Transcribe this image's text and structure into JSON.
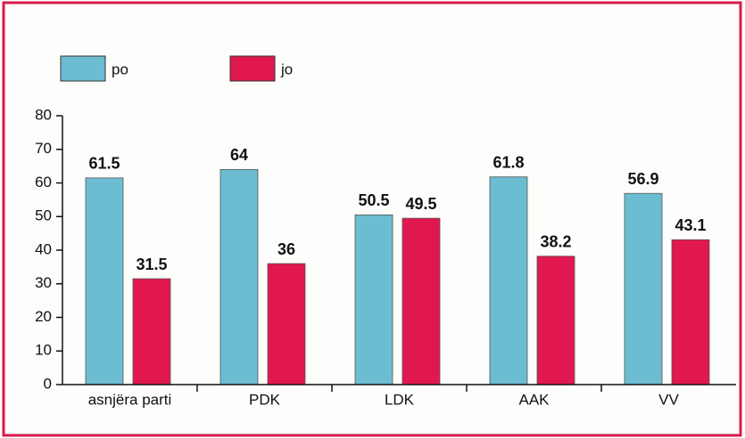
{
  "chart_data": {
    "type": "bar",
    "categories": [
      "asnjëra parti",
      "PDK",
      "LDK",
      "AAK",
      "VV"
    ],
    "series": [
      {
        "name": "po",
        "color": "#6cbcd2",
        "values": [
          61.5,
          64,
          50.5,
          61.8,
          56.9
        ]
      },
      {
        "name": "jo",
        "color": "#e0184f",
        "values": [
          31.5,
          36,
          49.5,
          38.2,
          43.1
        ]
      }
    ],
    "ylim": [
      0,
      80
    ],
    "yticks": [
      0,
      10,
      20,
      30,
      40,
      50,
      60,
      70,
      80
    ],
    "grid": false,
    "legend": "top-left"
  }
}
